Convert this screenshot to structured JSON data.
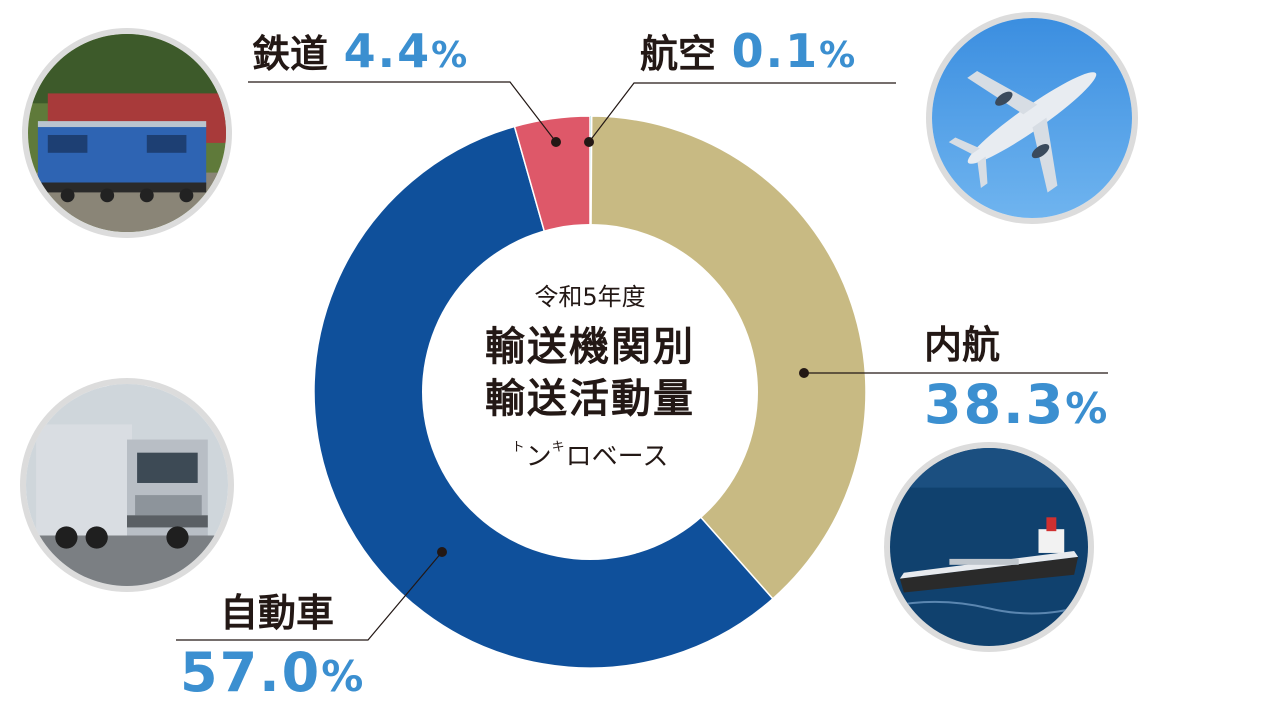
{
  "colors": {
    "rail": "#de5869",
    "air": "#33a7b5",
    "domestic_shipping": "#c8ba83",
    "road": "#0f509b",
    "percent_text": "#3b8fd0",
    "label_text": "#231815",
    "photo_border": "#dcdcdc"
  },
  "center": {
    "year": "令和5年度",
    "title_line1": "輸送機関別",
    "title_line2": "輸送活動量",
    "basis_ruby1": "ト",
    "basis_char1": "ン",
    "basis_ruby2": "キ",
    "basis_char2": "ロ",
    "basis_suffix": "ベース"
  },
  "labels": {
    "rail": {
      "name": "鉄道",
      "value": "4.4",
      "unit": "%"
    },
    "air": {
      "name": "航空",
      "value": "0.1",
      "unit": "%"
    },
    "domestic_shipping": {
      "name": "内航",
      "value": "38.3",
      "unit": "%"
    },
    "road": {
      "name": "自動車",
      "value": "57.0",
      "unit": "%"
    }
  },
  "photos": {
    "rail": "train-photo",
    "air": "airplane-photo",
    "domestic_shipping": "ship-photo",
    "road": "truck-photo"
  },
  "chart_data": {
    "type": "pie",
    "donut": true,
    "title": "輸送機関別輸送活動量",
    "subtitle": "令和5年度",
    "unit_basis": "トンキロベース",
    "start_angle": "top",
    "direction": "clockwise",
    "slices": [
      {
        "label": "航空",
        "value": 0.1,
        "color": "#33a7b5"
      },
      {
        "label": "内航",
        "value": 38.3,
        "color": "#c8ba83"
      },
      {
        "label": "自動車",
        "value": 57.0,
        "color": "#0f509b"
      },
      {
        "label": "鉄道",
        "value": 4.4,
        "color": "#de5869"
      }
    ]
  }
}
